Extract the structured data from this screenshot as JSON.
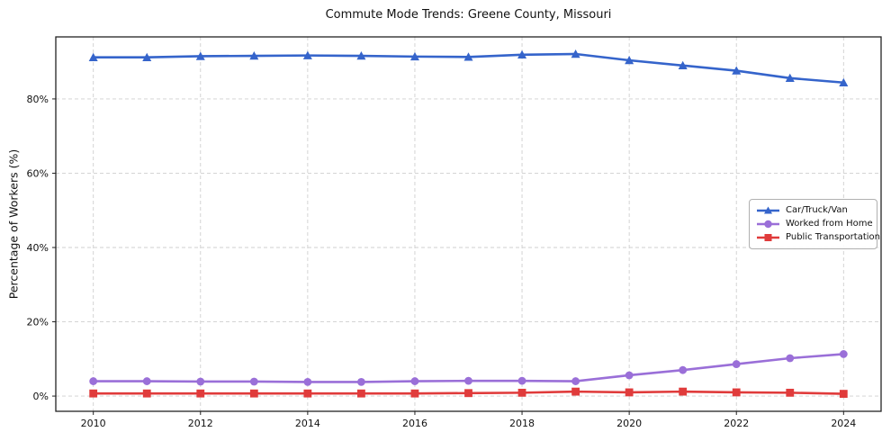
{
  "figure": {
    "background_color": "#ffffff"
  },
  "chart_data": {
    "type": "line",
    "title": "Commute Mode Trends: Greene County, Missouri",
    "xlabel": "",
    "ylabel": "Percentage of Workers (%)",
    "x": [
      2010,
      2011,
      2012,
      2013,
      2014,
      2015,
      2016,
      2017,
      2018,
      2019,
      2020,
      2021,
      2022,
      2023,
      2024
    ],
    "series": [
      {
        "name": "Car/Truck/Van",
        "color": "#3564cb",
        "marker": "triangle",
        "values": [
          91.2,
          91.2,
          91.5,
          91.6,
          91.7,
          91.6,
          91.4,
          91.3,
          91.9,
          92.1,
          90.4,
          89.0,
          87.6,
          85.6,
          84.4
        ]
      },
      {
        "name": "Worked from Home",
        "color": "#9a6fd8",
        "marker": "circle",
        "values": [
          4.0,
          4.0,
          3.9,
          3.9,
          3.8,
          3.8,
          4.0,
          4.1,
          4.1,
          4.0,
          5.6,
          7.0,
          8.6,
          10.2,
          11.3
        ]
      },
      {
        "name": "Public Transportation",
        "color": "#e03b3b",
        "marker": "square",
        "values": [
          0.7,
          0.7,
          0.7,
          0.7,
          0.7,
          0.7,
          0.7,
          0.8,
          0.9,
          1.2,
          1.0,
          1.2,
          1.0,
          0.9,
          0.6
        ]
      }
    ],
    "xlim": [
      2009.3,
      2024.7
    ],
    "ylim": [
      -4.1,
      96.7
    ],
    "xticks": [
      2010,
      2012,
      2014,
      2016,
      2018,
      2020,
      2022,
      2024
    ],
    "xtick_labels": [
      "2010",
      "2012",
      "2014",
      "2016",
      "2018",
      "2020",
      "2022",
      "2024"
    ],
    "yticks": [
      0,
      20,
      40,
      60,
      80
    ],
    "ytick_labels": [
      "0%",
      "20%",
      "40%",
      "60%",
      "80%"
    ],
    "grid": true,
    "grid_style": "dashed",
    "legend_position": "center-right",
    "colors": {
      "grid": "#cfcfcf",
      "spine": "#222222",
      "tick_text": "#111111",
      "title_text": "#111111",
      "legend_border": "#b0b0b0",
      "legend_background": "#ffffff"
    }
  }
}
